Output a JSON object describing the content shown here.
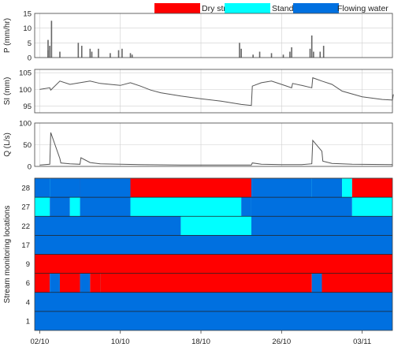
{
  "chart_data": {
    "type": "multi-panel time series and status raster",
    "legend": [
      {
        "name": "Dry streambed",
        "color": "#ff0000"
      },
      {
        "name": "Standing water",
        "color": "#00ffff"
      },
      {
        "name": "Flowing water",
        "color": "#0070e0"
      }
    ],
    "x_axis": {
      "start": "2023-10-02",
      "end": "2023-11-06",
      "ticks": [
        "02/10",
        "10/10",
        "18/10",
        "26/10",
        "03/11"
      ]
    },
    "precip": {
      "ylabel": "P (mm/hr)",
      "ylim": [
        0,
        15
      ],
      "yticks": [
        "0",
        "5",
        "10",
        "15"
      ],
      "bars": [
        [
          "2023-10-03",
          2.5
        ],
        [
          "2023-10-03",
          4
        ],
        [
          "2023-10-03",
          12.5
        ],
        [
          "2023-10-03",
          6
        ],
        [
          "2023-10-04",
          2
        ],
        [
          "2023-10-06",
          4
        ],
        [
          "2023-10-06",
          5
        ],
        [
          "2023-10-07",
          3
        ],
        [
          "2023-10-07",
          2
        ],
        [
          "2023-10-08",
          3
        ],
        [
          "2023-10-09",
          1.5
        ],
        [
          "2023-10-10",
          3
        ],
        [
          "2023-10-10",
          2.5
        ],
        [
          "2023-10-11",
          1.5
        ],
        [
          "2023-10-11",
          1
        ],
        [
          "2023-10-22",
          5
        ],
        [
          "2023-10-22",
          3
        ],
        [
          "2023-10-23",
          1
        ],
        [
          "2023-10-24",
          2
        ],
        [
          "2023-10-25",
          1.5
        ],
        [
          "2023-10-26",
          1
        ],
        [
          "2023-10-27",
          2
        ],
        [
          "2023-10-27",
          3.5
        ],
        [
          "2023-10-29",
          2
        ],
        [
          "2023-10-29",
          3
        ],
        [
          "2023-10-29",
          7.5
        ],
        [
          "2023-10-30",
          4
        ],
        [
          "2023-10-30",
          2
        ]
      ]
    },
    "storage": {
      "ylabel": "SI (mm)",
      "ylim": [
        93,
        106
      ],
      "yticks": [
        "95",
        "100",
        "105"
      ],
      "points": [
        [
          "2023-10-02",
          100
        ],
        [
          "2023-10-03",
          100.5
        ],
        [
          "2023-10-03",
          99.8
        ],
        [
          "2023-10-04",
          102.5
        ],
        [
          "2023-10-05",
          101.5
        ],
        [
          "2023-10-06",
          102
        ],
        [
          "2023-10-07",
          102.5
        ],
        [
          "2023-10-08",
          101.8
        ],
        [
          "2023-10-09",
          101.5
        ],
        [
          "2023-10-10",
          101.2
        ],
        [
          "2023-10-11",
          102
        ],
        [
          "2023-10-12",
          101
        ],
        [
          "2023-10-13",
          99.8
        ],
        [
          "2023-10-14",
          99
        ],
        [
          "2023-10-16",
          98
        ],
        [
          "2023-10-18",
          97.2
        ],
        [
          "2023-10-20",
          96.5
        ],
        [
          "2023-10-22",
          95.5
        ],
        [
          "2023-10-23",
          95.2
        ],
        [
          "2023-10-23",
          101
        ],
        [
          "2023-10-24",
          102
        ],
        [
          "2023-10-25",
          102.5
        ],
        [
          "2023-10-26",
          101.5
        ],
        [
          "2023-10-27",
          100.5
        ],
        [
          "2023-10-27",
          101.8
        ],
        [
          "2023-10-28",
          101.2
        ],
        [
          "2023-10-29",
          100.5
        ],
        [
          "2023-10-29",
          103.5
        ],
        [
          "2023-10-30",
          102.5
        ],
        [
          "2023-10-31",
          101.5
        ],
        [
          "2023-11-01",
          99.5
        ],
        [
          "2023-11-03",
          97.8
        ],
        [
          "2023-11-05",
          97
        ],
        [
          "2023-11-06",
          96.8
        ],
        [
          "2023-11-06",
          98.5
        ]
      ]
    },
    "discharge": {
      "ylabel": "Q (L/s)",
      "ylim": [
        0,
        100
      ],
      "yticks": [
        "0",
        "50",
        "100"
      ],
      "points": [
        [
          "2023-10-02",
          3
        ],
        [
          "2023-10-03",
          5
        ],
        [
          "2023-10-03",
          78
        ],
        [
          "2023-10-04",
          18
        ],
        [
          "2023-10-04",
          8
        ],
        [
          "2023-10-05",
          6
        ],
        [
          "2023-10-06",
          5
        ],
        [
          "2023-10-06",
          20
        ],
        [
          "2023-10-07",
          9
        ],
        [
          "2023-10-08",
          6
        ],
        [
          "2023-10-10",
          5
        ],
        [
          "2023-10-12",
          4
        ],
        [
          "2023-10-16",
          3
        ],
        [
          "2023-10-20",
          3
        ],
        [
          "2023-10-23",
          3
        ],
        [
          "2023-10-23",
          8
        ],
        [
          "2023-10-24",
          5
        ],
        [
          "2023-10-26",
          4
        ],
        [
          "2023-10-28",
          4
        ],
        [
          "2023-10-29",
          6
        ],
        [
          "2023-10-29",
          60
        ],
        [
          "2023-10-30",
          35
        ],
        [
          "2023-10-30",
          12
        ],
        [
          "2023-10-31",
          7
        ],
        [
          "2023-11-02",
          5
        ],
        [
          "2023-11-06",
          4
        ]
      ]
    },
    "locations": {
      "ylabel": "Stream monitoring locations",
      "rows": [
        {
          "label": "28",
          "segments": [
            [
              "2023-10-02",
              "2023-10-03",
              "Flowing water"
            ],
            [
              "2023-10-03",
              "2023-10-03",
              "Standing water"
            ],
            [
              "2023-10-03",
              "2023-10-06",
              "Flowing water"
            ],
            [
              "2023-10-06",
              "2023-10-06",
              "Standing water"
            ],
            [
              "2023-10-06",
              "2023-10-06",
              "Dry streambed"
            ],
            [
              "2023-10-06",
              "2023-10-11",
              "Flowing water"
            ],
            [
              "2023-10-11",
              "2023-10-11",
              "Standing water"
            ],
            [
              "2023-10-11",
              "2023-10-23",
              "Dry streambed"
            ],
            [
              "2023-10-23",
              "2023-10-29",
              "Flowing water"
            ],
            [
              "2023-10-29",
              "2023-10-29",
              "Standing water"
            ],
            [
              "2023-10-29",
              "2023-11-01",
              "Flowing water"
            ],
            [
              "2023-11-01",
              "2023-11-02",
              "Standing water"
            ],
            [
              "2023-11-02",
              "2023-11-06",
              "Dry streambed"
            ]
          ]
        },
        {
          "label": "27",
          "segments": [
            [
              "2023-10-02",
              "2023-10-03",
              "Standing water"
            ],
            [
              "2023-10-03",
              "2023-10-05",
              "Flowing water"
            ],
            [
              "2023-10-05",
              "2023-10-06",
              "Standing water"
            ],
            [
              "2023-10-06",
              "2023-10-11",
              "Flowing water"
            ],
            [
              "2023-10-11",
              "2023-10-22",
              "Standing water"
            ],
            [
              "2023-10-22",
              "2023-10-23",
              "Flowing water"
            ],
            [
              "2023-10-23",
              "2023-10-23",
              "Standing water"
            ],
            [
              "2023-10-23",
              "2023-11-02",
              "Flowing water"
            ],
            [
              "2023-11-02",
              "2023-11-06",
              "Standing water"
            ]
          ]
        },
        {
          "label": "22",
          "segments": [
            [
              "2023-10-02",
              "2023-10-16",
              "Flowing water"
            ],
            [
              "2023-10-16",
              "2023-10-23",
              "Standing water"
            ],
            [
              "2023-10-23",
              "2023-11-06",
              "Flowing water"
            ]
          ]
        },
        {
          "label": "17",
          "segments": [
            [
              "2023-10-02",
              "2023-11-06",
              "Flowing water"
            ]
          ]
        },
        {
          "label": "9",
          "segments": [
            [
              "2023-10-02",
              "2023-11-06",
              "Dry streambed"
            ]
          ]
        },
        {
          "label": "6",
          "segments": [
            [
              "2023-10-02",
              "2023-10-03",
              "Dry streambed"
            ],
            [
              "2023-10-03",
              "2023-10-04",
              "Flowing water"
            ],
            [
              "2023-10-04",
              "2023-10-06",
              "Dry streambed"
            ],
            [
              "2023-10-06",
              "2023-10-07",
              "Flowing water"
            ],
            [
              "2023-10-07",
              "2023-10-08",
              "Dry streambed"
            ],
            [
              "2023-10-08",
              "2023-10-08",
              "Standing water"
            ],
            [
              "2023-10-08",
              "2023-10-29",
              "Dry streambed"
            ],
            [
              "2023-10-29",
              "2023-10-30",
              "Flowing water"
            ],
            [
              "2023-10-30",
              "2023-11-06",
              "Dry streambed"
            ]
          ]
        },
        {
          "label": "4",
          "segments": [
            [
              "2023-10-02",
              "2023-11-06",
              "Flowing water"
            ]
          ]
        },
        {
          "label": "1",
          "segments": [
            [
              "2023-10-02",
              "2023-11-06",
              "Flowing water"
            ]
          ]
        }
      ]
    }
  }
}
